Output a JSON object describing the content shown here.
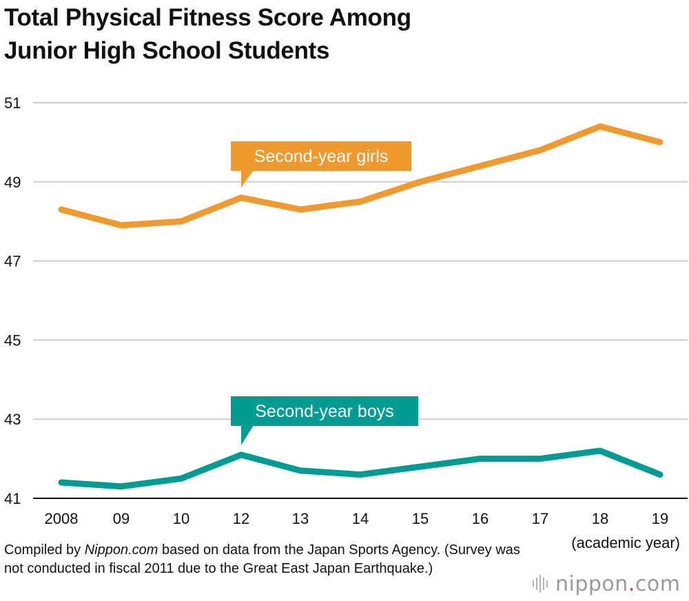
{
  "title_lines": [
    "Total Physical Fitness Score Among",
    "Junior High School Students"
  ],
  "footnote": {
    "prefix": "Compiled by ",
    "source": "Nippon.com",
    "suffix": " based on data from the Japan Sports Agency. (Survey was not conducted in fiscal 2011 due to the Great East Japan Earthquake.)"
  },
  "brand": {
    "left": "nippon",
    "dot": ".",
    "right": "com"
  },
  "colors": {
    "girls": "#f0992e",
    "boys": "#009c94",
    "grid": "#cccccc",
    "axis": "#111111"
  },
  "chart_data": {
    "type": "line",
    "title": "Total Physical Fitness Score Among Junior High School Students",
    "xlabel": "(academic year)",
    "ylabel": "",
    "x": [
      "2008",
      "09",
      "10",
      "12",
      "13",
      "14",
      "15",
      "16",
      "17",
      "18",
      "19"
    ],
    "ylim": [
      41,
      51
    ],
    "yticks": [
      41,
      43,
      45,
      47,
      49,
      51
    ],
    "grid": true,
    "series": [
      {
        "name": "Second-year girls",
        "color": "#f0992e",
        "values": [
          48.3,
          47.9,
          48.0,
          48.6,
          48.3,
          48.5,
          49.0,
          49.4,
          49.8,
          50.4,
          50.0
        ]
      },
      {
        "name": "Second-year boys",
        "color": "#009c94",
        "values": [
          41.4,
          41.3,
          41.5,
          42.1,
          41.7,
          41.6,
          41.8,
          42.0,
          42.0,
          42.2,
          41.6
        ]
      }
    ]
  }
}
